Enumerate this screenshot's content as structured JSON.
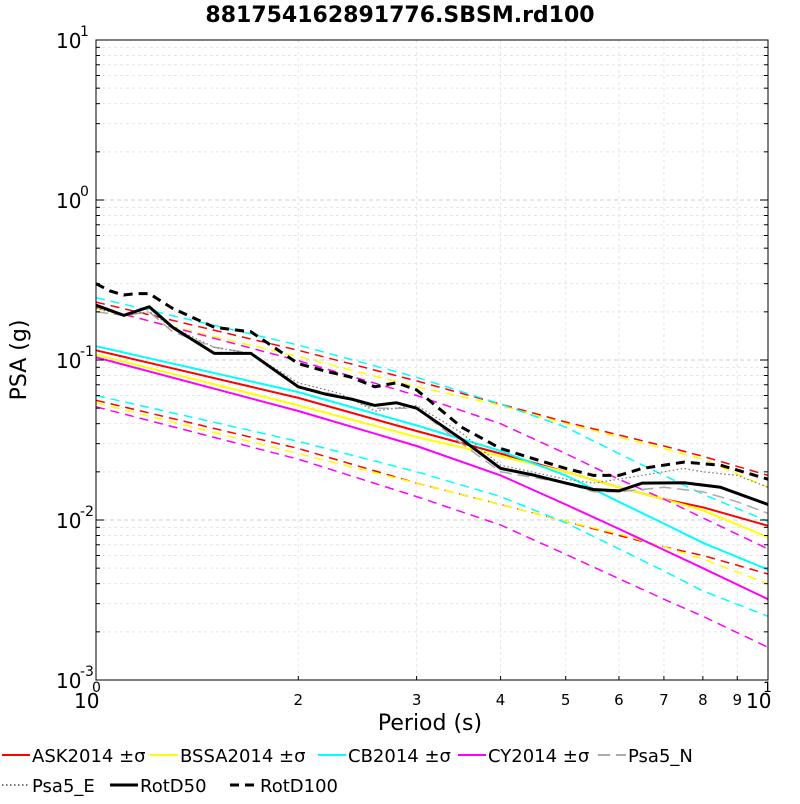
{
  "chart_data": {
    "type": "line",
    "title": "881754162891776.SBSM.rd100",
    "xlabel": "Period (s)",
    "ylabel": "PSA (g)",
    "xscale": "log",
    "yscale": "log",
    "xlim": [
      1,
      10
    ],
    "ylim": [
      0.001,
      10
    ],
    "grid": "both",
    "legend": "bottom",
    "x_major_ticks": [
      {
        "value": 1,
        "base": "10",
        "exp": "0"
      },
      {
        "value": 10,
        "base": "10",
        "exp": "1"
      }
    ],
    "x_minor_ticks": [
      {
        "value": 2,
        "label": "2"
      },
      {
        "value": 3,
        "label": "3"
      },
      {
        "value": 4,
        "label": "4"
      },
      {
        "value": 5,
        "label": "5"
      },
      {
        "value": 6,
        "label": "6"
      },
      {
        "value": 7,
        "label": "7"
      },
      {
        "value": 8,
        "label": "8"
      },
      {
        "value": 9,
        "label": "9"
      }
    ],
    "y_major_ticks": [
      {
        "value": 0.001,
        "base": "10",
        "exp": "-3"
      },
      {
        "value": 0.01,
        "base": "10",
        "exp": "-2"
      },
      {
        "value": 0.1,
        "base": "10",
        "exp": "-1"
      },
      {
        "value": 1,
        "base": "10",
        "exp": "0"
      },
      {
        "value": 10,
        "base": "10",
        "exp": "1"
      }
    ],
    "series": [
      {
        "name": "ASK2014 ±σ",
        "color": "#ff0000",
        "legend": true,
        "style": "solid",
        "width": 2,
        "x": [
          1,
          2,
          3,
          4,
          5,
          6,
          7,
          8,
          10
        ],
        "y": [
          0.115,
          0.058,
          0.036,
          0.026,
          0.02,
          0.016,
          0.0135,
          0.012,
          0.0092
        ]
      },
      {
        "name": "",
        "color": "#ff0000",
        "legend": false,
        "style": "dashed",
        "width": 1.5,
        "x": [
          1,
          2,
          3,
          4,
          5,
          6,
          7,
          8,
          10
        ],
        "y": [
          0.23,
          0.115,
          0.074,
          0.053,
          0.041,
          0.034,
          0.029,
          0.025,
          0.019
        ]
      },
      {
        "name": "",
        "color": "#ff0000",
        "legend": false,
        "style": "dashed",
        "width": 1.5,
        "x": [
          1,
          2,
          3,
          4,
          5,
          6,
          7,
          8,
          10
        ],
        "y": [
          0.056,
          0.028,
          0.017,
          0.0125,
          0.0098,
          0.008,
          0.0068,
          0.006,
          0.0046
        ]
      },
      {
        "name": "BSSA2014 ±σ",
        "color": "#ffff00",
        "legend": true,
        "style": "solid",
        "width": 2,
        "x": [
          1,
          2,
          3,
          4,
          5,
          6,
          7,
          8,
          10
        ],
        "y": [
          0.108,
          0.052,
          0.033,
          0.025,
          0.02,
          0.016,
          0.0135,
          0.0115,
          0.0078
        ]
      },
      {
        "name": "",
        "color": "#ffff00",
        "legend": false,
        "style": "dashed",
        "width": 1.5,
        "x": [
          1,
          2,
          3,
          4,
          5,
          6,
          7,
          8,
          10
        ],
        "y": [
          0.21,
          0.105,
          0.068,
          0.052,
          0.04,
          0.033,
          0.028,
          0.024,
          0.016
        ]
      },
      {
        "name": "",
        "color": "#ffff00",
        "legend": false,
        "style": "dashed",
        "width": 1.5,
        "x": [
          1,
          2,
          3,
          4,
          5,
          6,
          7,
          8,
          10
        ],
        "y": [
          0.054,
          0.026,
          0.017,
          0.0125,
          0.0098,
          0.0082,
          0.0068,
          0.0057,
          0.004
        ]
      },
      {
        "name": "CB2014 ±σ",
        "color": "#00ffff",
        "legend": true,
        "style": "solid",
        "width": 2,
        "x": [
          1,
          2,
          3,
          4,
          5,
          6,
          7,
          8,
          10
        ],
        "y": [
          0.122,
          0.063,
          0.039,
          0.027,
          0.019,
          0.013,
          0.0095,
          0.0072,
          0.0049
        ]
      },
      {
        "name": "",
        "color": "#00ffff",
        "legend": false,
        "style": "dashed",
        "width": 1.5,
        "x": [
          1,
          2,
          3,
          4,
          5,
          6,
          7,
          8,
          10
        ],
        "y": [
          0.245,
          0.124,
          0.078,
          0.053,
          0.038,
          0.026,
          0.019,
          0.0145,
          0.0098
        ]
      },
      {
        "name": "",
        "color": "#00ffff",
        "legend": false,
        "style": "dashed",
        "width": 1.5,
        "x": [
          1,
          2,
          3,
          4,
          5,
          6,
          7,
          8,
          10
        ],
        "y": [
          0.06,
          0.031,
          0.02,
          0.014,
          0.0096,
          0.0066,
          0.0048,
          0.0036,
          0.0025
        ]
      },
      {
        "name": "CY2014 ±σ",
        "color": "#ff00ff",
        "legend": true,
        "style": "solid",
        "width": 2,
        "x": [
          1,
          2,
          3,
          4,
          5,
          6,
          7,
          8,
          10
        ],
        "y": [
          0.104,
          0.048,
          0.029,
          0.019,
          0.0125,
          0.0088,
          0.0065,
          0.005,
          0.0032
        ]
      },
      {
        "name": "",
        "color": "#ff00ff",
        "legend": false,
        "style": "dashed",
        "width": 1.5,
        "x": [
          1,
          2,
          3,
          4,
          5,
          6,
          7,
          8,
          10
        ],
        "y": [
          0.215,
          0.099,
          0.06,
          0.04,
          0.026,
          0.018,
          0.0135,
          0.0103,
          0.0066
        ]
      },
      {
        "name": "",
        "color": "#ff00ff",
        "legend": false,
        "style": "dashed",
        "width": 1.5,
        "x": [
          1,
          2,
          3,
          4,
          5,
          6,
          7,
          8,
          10
        ],
        "y": [
          0.051,
          0.024,
          0.014,
          0.0093,
          0.0061,
          0.0043,
          0.0032,
          0.0025,
          0.0016
        ]
      },
      {
        "name": "Psa5_N",
        "color": "#aaaaaa",
        "legend": true,
        "style": "longdash",
        "width": 1.5,
        "x": [
          1,
          1.1,
          1.2,
          1.3,
          1.5,
          1.7,
          2,
          2.3,
          2.6,
          3,
          3.5,
          4,
          5,
          5.5,
          6,
          7,
          8,
          9,
          10
        ],
        "y": [
          0.2,
          0.19,
          0.2,
          0.15,
          0.12,
          0.11,
          0.068,
          0.06,
          0.05,
          0.05,
          0.03,
          0.02,
          0.017,
          0.015,
          0.015,
          0.016,
          0.015,
          0.013,
          0.011
        ]
      },
      {
        "name": "Psa5_E",
        "color": "#777777",
        "legend": true,
        "style": "dotted",
        "width": 1.2,
        "x": [
          1,
          1.1,
          1.2,
          1.3,
          1.5,
          1.7,
          2,
          2.3,
          2.6,
          3,
          3.5,
          4,
          5,
          5.5,
          6,
          7,
          7.5,
          8,
          9,
          10
        ],
        "y": [
          0.21,
          0.19,
          0.2,
          0.16,
          0.12,
          0.11,
          0.072,
          0.062,
          0.048,
          0.052,
          0.035,
          0.022,
          0.018,
          0.017,
          0.018,
          0.02,
          0.021,
          0.02,
          0.019,
          0.016
        ]
      },
      {
        "name": "RotD50",
        "color": "#000000",
        "legend": true,
        "style": "solid",
        "width": 3,
        "x": [
          1,
          1.1,
          1.2,
          1.3,
          1.5,
          1.7,
          2,
          2.2,
          2.4,
          2.6,
          2.8,
          3,
          3.5,
          4,
          4.5,
          5,
          5.5,
          6,
          6.5,
          7.5,
          8.5,
          10
        ],
        "y": [
          0.22,
          0.19,
          0.215,
          0.16,
          0.11,
          0.11,
          0.068,
          0.061,
          0.057,
          0.052,
          0.054,
          0.05,
          0.032,
          0.021,
          0.019,
          0.017,
          0.0155,
          0.0152,
          0.017,
          0.0171,
          0.016,
          0.0125
        ]
      },
      {
        "name": "RotD100",
        "color": "#000000",
        "legend": true,
        "style": "dashed",
        "width": 3,
        "x": [
          1,
          1.05,
          1.1,
          1.15,
          1.2,
          1.3,
          1.5,
          1.7,
          2,
          2.2,
          2.4,
          2.6,
          2.8,
          3,
          3.5,
          4,
          4.5,
          5,
          5.5,
          6,
          6.5,
          7.5,
          8.5,
          10
        ],
        "y": [
          0.3,
          0.27,
          0.255,
          0.26,
          0.26,
          0.21,
          0.16,
          0.15,
          0.095,
          0.085,
          0.078,
          0.068,
          0.072,
          0.065,
          0.038,
          0.028,
          0.024,
          0.021,
          0.019,
          0.019,
          0.021,
          0.023,
          0.022,
          0.018
        ]
      }
    ]
  }
}
